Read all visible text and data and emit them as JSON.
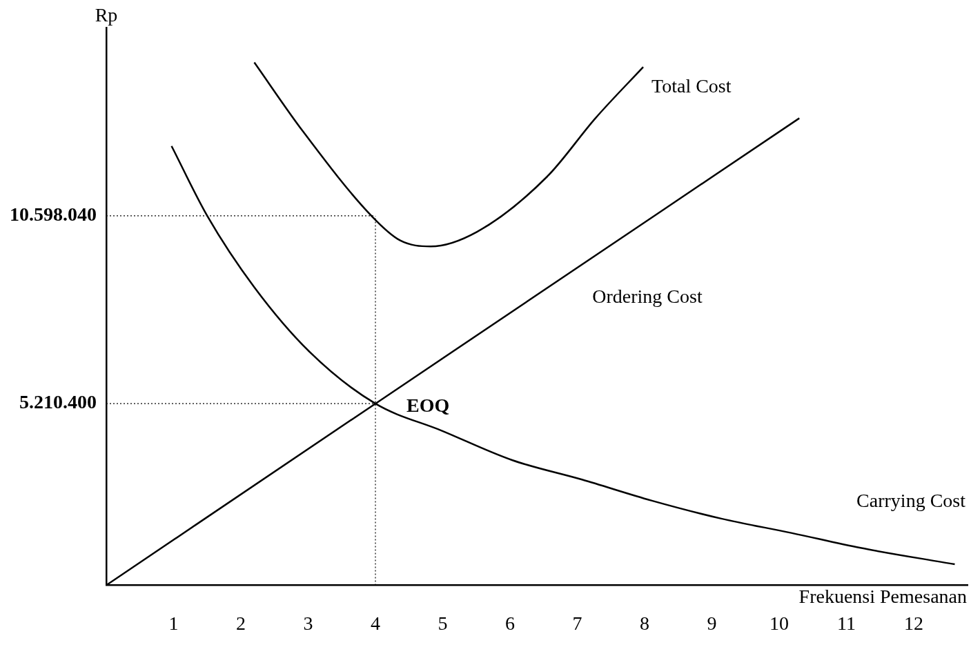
{
  "chart_data": {
    "type": "line",
    "xlabel": "Frekuensi Pemesanan",
    "ylabel": "Rp",
    "xlim": [
      0,
      12.8
    ],
    "xticks": [
      1,
      2,
      3,
      4,
      5,
      6,
      7,
      8,
      9,
      10,
      11,
      12
    ],
    "ylim": [
      0,
      16000000
    ],
    "yticks": [
      {
        "value": 5210400,
        "label": "5.210.400"
      },
      {
        "value": 10598040,
        "label": "10.598.040"
      }
    ],
    "series": [
      {
        "name": "Total Cost",
        "color": "#000000",
        "x": [
          2.2,
          2.92,
          3.94,
          4.37,
          4.82,
          5.51,
          6.55,
          7.27,
          7.98
        ],
        "values": [
          15000000,
          13030000,
          10600000,
          9890000,
          9720000,
          10140000,
          11720000,
          13400000,
          14870000
        ]
      },
      {
        "name": "Ordering Cost",
        "color": "#000000",
        "x": [
          0,
          4,
          10.3
        ],
        "values": [
          0,
          5210000,
          13400000
        ]
      },
      {
        "name": "Carrying Cost",
        "color": "#000000",
        "x": [
          0.97,
          1.5,
          2.2,
          3.03,
          4,
          4.99,
          6.03,
          7.07,
          8.1,
          9.14,
          10.18,
          11.21,
          12.61
        ],
        "values": [
          12600000,
          10600000,
          8550000,
          6680000,
          5210000,
          4430000,
          3590000,
          3030000,
          2430000,
          1910000,
          1500000,
          1070000,
          600000
        ]
      }
    ],
    "ref_lines": [
      {
        "axis": "y",
        "value": 10598040,
        "line_style": "dotted"
      },
      {
        "axis": "y",
        "value": 5210400,
        "line_style": "dotted"
      },
      {
        "axis": "x",
        "value": 4,
        "line_style": "dotted"
      }
    ],
    "annotations": [
      {
        "text": "EOQ",
        "x": 4,
        "y": 5210400
      }
    ],
    "grid": false,
    "legend": false,
    "marker": "none",
    "line_style": "solid"
  }
}
